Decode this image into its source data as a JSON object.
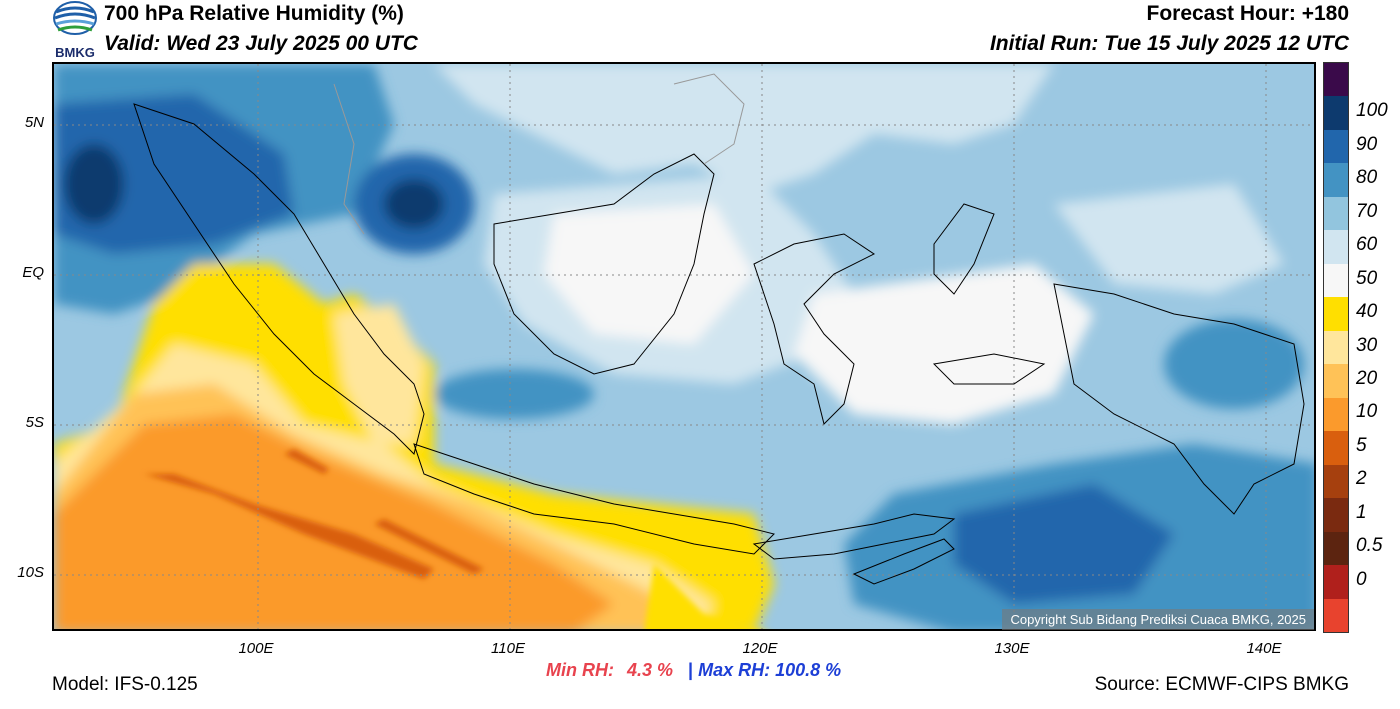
{
  "header": {
    "title": "700 hPa Relative Humidity (%)",
    "valid": "Valid: Wed 23 July 2025 00 UTC",
    "forecast_hour": "Forecast Hour: +180",
    "initial_run": "Initial Run: Tue 15 July 2025 12 UTC",
    "logo_text": "BMKG"
  },
  "map": {
    "lat_labels": [
      "5N",
      "EQ",
      "5S",
      "10S"
    ],
    "lon_labels": [
      "100E",
      "110E",
      "120E",
      "130E",
      "140E"
    ],
    "copyright": "Copyright Sub Bidang Prediksi Cuaca BMKG, 2025"
  },
  "colorbar": {
    "labels": [
      "100",
      "90",
      "80",
      "70",
      "60",
      "50",
      "40",
      "30",
      "20",
      "10",
      "5",
      "2",
      "1",
      "0.5",
      "0"
    ],
    "colors": [
      "#3a0a4a",
      "#0d3a6e",
      "#2166ac",
      "#4393c3",
      "#92c5de",
      "#d1e5f0",
      "#f7f7f7",
      "#ffdf00",
      "#ffe69c",
      "#ffc257",
      "#fb9a2c",
      "#d95f0e",
      "#a6400e",
      "#7a2a10",
      "#5c2410",
      "#b0201c",
      "#e8432e"
    ]
  },
  "footer": {
    "model": "Model: IFS-0.125",
    "min_label": "Min RH:",
    "min_value": "4.3 %",
    "separator": "|",
    "max_label": "Max RH:",
    "max_value": "100.8 %",
    "source": "Source: ECMWF-CIPS BMKG"
  }
}
